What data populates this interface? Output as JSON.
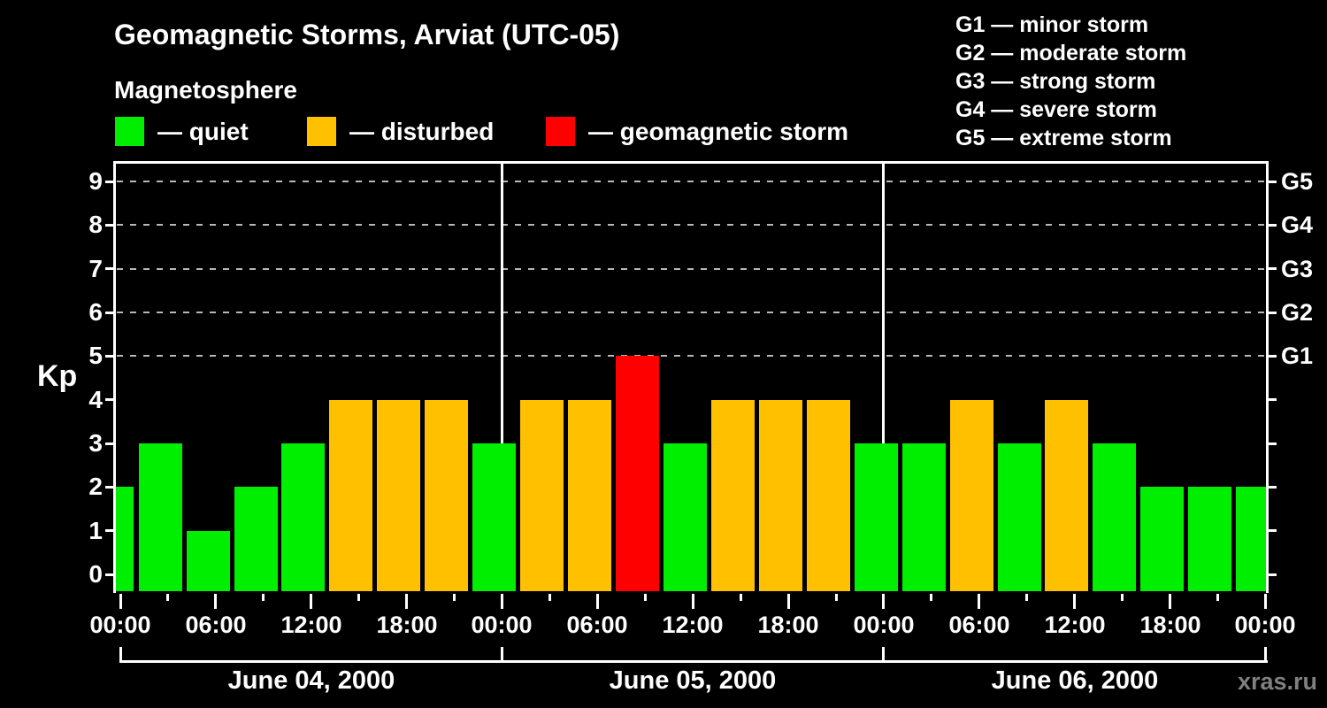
{
  "title": "Geomagnetic Storms, Arviat (UTC-05)",
  "subtitle": "Magnetosphere",
  "watermark": "xras.ru",
  "colors": {
    "quiet": "#00ee00",
    "disturbed": "#ffc000",
    "storm": "#ff0000",
    "background": "#000000",
    "axis": "#ffffff",
    "grid": "#b8b8b8",
    "watermark_text": "#808080"
  },
  "legend": [
    {
      "key": "quiet",
      "label": "— quiet"
    },
    {
      "key": "disturbed",
      "label": "— disturbed"
    },
    {
      "key": "storm",
      "label": "— geomagnetic storm"
    }
  ],
  "g_legend": [
    "G1 — minor storm",
    "G2 — moderate storm",
    "G3 — strong storm",
    "G4 — severe storm",
    "G5 — extreme storm"
  ],
  "chart_data": {
    "type": "bar",
    "title": "Geomagnetic Storms, Arviat (UTC-05)",
    "ylabel": "Kp",
    "ylim": [
      0,
      9.4
    ],
    "yticks": [
      0,
      1,
      2,
      3,
      4,
      5,
      6,
      7,
      8,
      9
    ],
    "gridlines_at": [
      5,
      6,
      7,
      8,
      9
    ],
    "grid": "dashed-horizontal",
    "legend_position": "top",
    "g_scale": [
      {
        "label": "G1",
        "kp": 5
      },
      {
        "label": "G2",
        "kp": 6
      },
      {
        "label": "G3",
        "kp": 7
      },
      {
        "label": "G4",
        "kp": 8
      },
      {
        "label": "G5",
        "kp": 9
      }
    ],
    "x_minor_step_hours": 3,
    "x_major_step_hours": 6,
    "x_time_labels": [
      "00:00",
      "06:00",
      "12:00",
      "18:00",
      "00:00",
      "06:00",
      "12:00",
      "18:00",
      "00:00",
      "06:00",
      "12:00",
      "18:00",
      "00:00"
    ],
    "days": [
      {
        "label": "June 04, 2000"
      },
      {
        "label": "June 05, 2000"
      },
      {
        "label": "June 06, 2000"
      }
    ],
    "bar_interval_hours": 3,
    "bars": [
      {
        "start_hour": -2,
        "kp": 2,
        "level": "quiet"
      },
      {
        "start_hour": 1,
        "kp": 3,
        "level": "quiet"
      },
      {
        "start_hour": 4,
        "kp": 1,
        "level": "quiet"
      },
      {
        "start_hour": 7,
        "kp": 2,
        "level": "quiet"
      },
      {
        "start_hour": 10,
        "kp": 3,
        "level": "quiet"
      },
      {
        "start_hour": 13,
        "kp": 4,
        "level": "disturbed"
      },
      {
        "start_hour": 16,
        "kp": 4,
        "level": "disturbed"
      },
      {
        "start_hour": 19,
        "kp": 4,
        "level": "disturbed"
      },
      {
        "start_hour": 22,
        "kp": 3,
        "level": "quiet"
      },
      {
        "start_hour": 25,
        "kp": 4,
        "level": "disturbed"
      },
      {
        "start_hour": 28,
        "kp": 4,
        "level": "disturbed"
      },
      {
        "start_hour": 31,
        "kp": 5,
        "level": "storm"
      },
      {
        "start_hour": 34,
        "kp": 3,
        "level": "quiet"
      },
      {
        "start_hour": 37,
        "kp": 4,
        "level": "disturbed"
      },
      {
        "start_hour": 40,
        "kp": 4,
        "level": "disturbed"
      },
      {
        "start_hour": 43,
        "kp": 4,
        "level": "disturbed"
      },
      {
        "start_hour": 46,
        "kp": 3,
        "level": "quiet"
      },
      {
        "start_hour": 49,
        "kp": 3,
        "level": "quiet"
      },
      {
        "start_hour": 52,
        "kp": 4,
        "level": "disturbed"
      },
      {
        "start_hour": 55,
        "kp": 3,
        "level": "quiet"
      },
      {
        "start_hour": 58,
        "kp": 4,
        "level": "disturbed"
      },
      {
        "start_hour": 61,
        "kp": 3,
        "level": "quiet"
      },
      {
        "start_hour": 64,
        "kp": 2,
        "level": "quiet"
      },
      {
        "start_hour": 67,
        "kp": 2,
        "level": "quiet"
      },
      {
        "start_hour": 70,
        "kp": 2,
        "level": "quiet"
      }
    ]
  }
}
